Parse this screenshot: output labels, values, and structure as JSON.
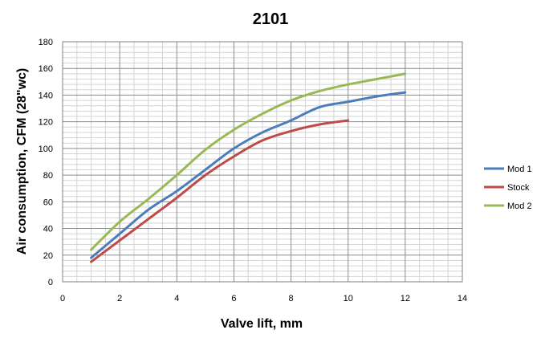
{
  "chart_data": {
    "type": "line",
    "title": "2101",
    "xlabel": "Valve lift, mm",
    "ylabel": "Air consumption, CFM (28\"wc)",
    "xlim": [
      0,
      14
    ],
    "ylim": [
      0,
      180
    ],
    "x_ticks": [
      0,
      2,
      4,
      6,
      8,
      10,
      12,
      14
    ],
    "y_ticks": [
      0,
      20,
      40,
      60,
      80,
      100,
      120,
      140,
      160,
      180
    ],
    "grid": true,
    "legend_position": "right",
    "series": [
      {
        "name": "Mod 1",
        "color": "#4a7ebb",
        "x": [
          1,
          2,
          3,
          4,
          5,
          6,
          7,
          8,
          9,
          10,
          11,
          12
        ],
        "y": [
          18,
          36,
          54,
          68,
          84,
          100,
          112,
          121,
          131,
          135,
          139,
          142
        ]
      },
      {
        "name": "Stock",
        "color": "#be4b48",
        "x": [
          1,
          2,
          3,
          4,
          5,
          6,
          7,
          8,
          9,
          10
        ],
        "y": [
          15,
          31,
          47,
          63,
          80,
          94,
          106,
          113,
          118,
          121
        ]
      },
      {
        "name": "Mod 2",
        "color": "#98b954",
        "x": [
          1,
          2,
          3,
          4,
          5,
          6,
          7,
          8,
          9,
          10,
          11,
          12
        ],
        "y": [
          24,
          45,
          62,
          80,
          99,
          114,
          126,
          136,
          143,
          148,
          152,
          156
        ]
      }
    ]
  }
}
